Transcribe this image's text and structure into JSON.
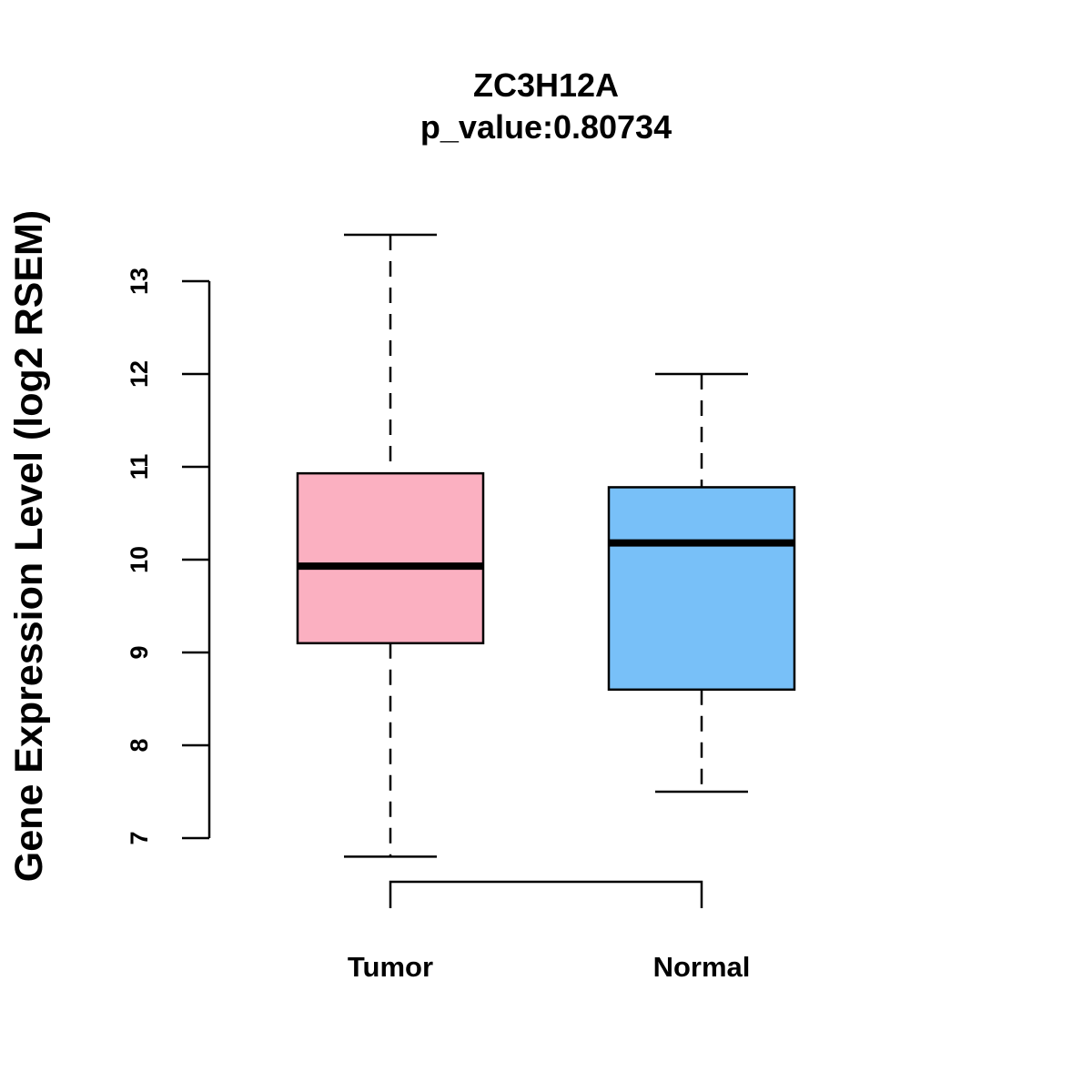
{
  "chart_data": {
    "type": "boxplot",
    "title": "ZC3H12A",
    "subtitle": "p_value:0.80734",
    "ylabel": "Gene Expression Level (log2 RSEM)",
    "xlabel": "",
    "ylim": [
      7,
      13
    ],
    "yticks": [
      7,
      8,
      9,
      10,
      11,
      12,
      13
    ],
    "categories": [
      "Tumor",
      "Normal"
    ],
    "boxes": [
      {
        "name": "Tumor",
        "whisker_low": 6.8,
        "q1": 9.1,
        "median": 9.93,
        "q3": 10.93,
        "whisker_high": 13.5,
        "color": "#FBB0C1"
      },
      {
        "name": "Normal",
        "whisker_low": 7.5,
        "q1": 8.6,
        "median": 10.18,
        "q3": 10.78,
        "whisker_high": 12.0,
        "color": "#78C0F8"
      }
    ],
    "comparison_bracket": [
      "Tumor",
      "Normal"
    ],
    "grid": false,
    "legend": "none"
  }
}
